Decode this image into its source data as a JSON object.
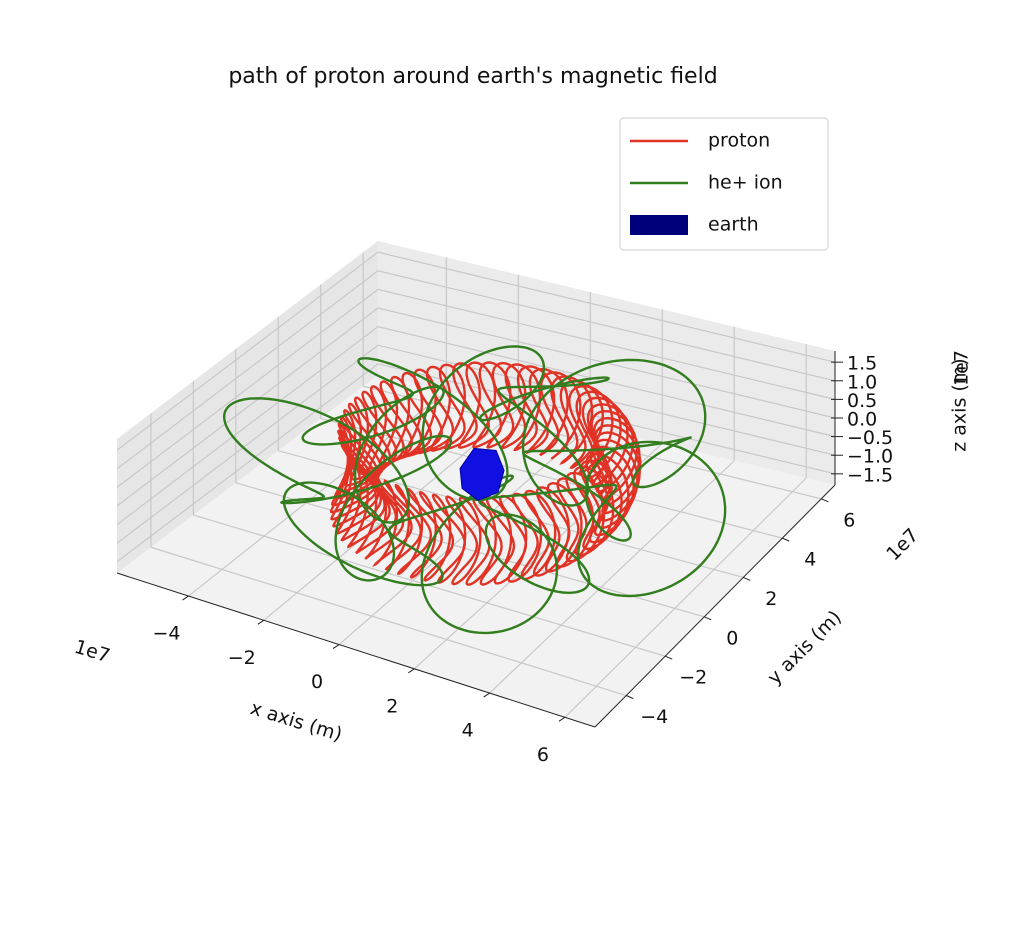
{
  "chart_data": {
    "type": "line3d",
    "title": "path of proton around earth's magnetic field",
    "xlabel": "x axis (m)",
    "ylabel": "y axis (m)",
    "zlabel": "z axis (m)",
    "x_offset": "1e7",
    "y_offset": "1e7",
    "z_offset": "1e7",
    "xlim": [
      -5.9,
      6.8
    ],
    "ylim": [
      -5.6,
      6.7
    ],
    "zlim": [
      -1.8,
      1.8
    ],
    "xticks": [
      {
        "value": -4,
        "label": "−4"
      },
      {
        "value": -2,
        "label": "−2"
      },
      0,
      2,
      4,
      6
    ],
    "yticks": [
      {
        "value": -4,
        "label": "−4"
      },
      {
        "value": -2,
        "label": "−2"
      },
      0,
      2,
      4,
      6
    ],
    "zticks": [
      {
        "value": -1.5,
        "label": "−1.5"
      },
      {
        "value": -1.0,
        "label": "−1.0"
      },
      {
        "value": -0.5,
        "label": "−0.5"
      },
      {
        "value": 0.0,
        "label": "0.0"
      },
      {
        "value": 0.5,
        "label": "0.5"
      },
      {
        "value": 1.0,
        "label": "1.0"
      },
      1.5
    ],
    "grid": true,
    "legend": "upper right",
    "series": [
      {
        "name": "proton",
        "color": "#e03325"
      },
      {
        "name": "he+ ion",
        "color": "#327d1e"
      },
      {
        "name": "earth",
        "color": "#00007a"
      }
    ]
  }
}
